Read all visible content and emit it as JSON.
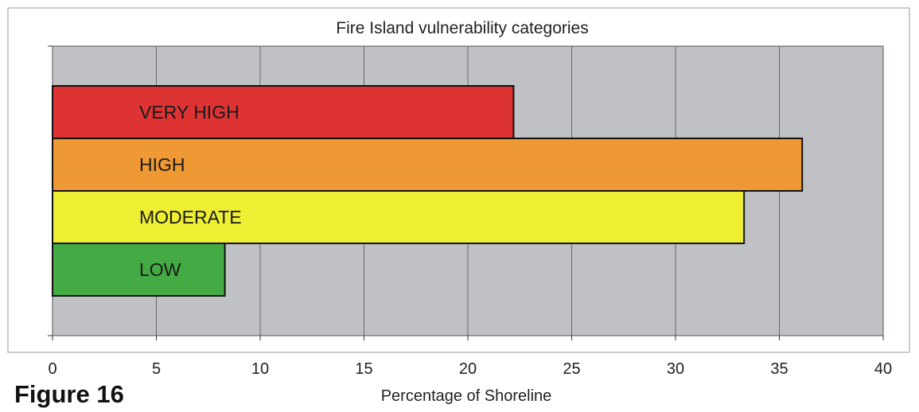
{
  "figure_label": "Figure 16",
  "chart_data": {
    "type": "bar",
    "orientation": "horizontal",
    "title": "Fire Island vulnerability categories",
    "xlabel": "Percentage of Shoreline",
    "ylabel": "",
    "xlim": [
      0,
      40
    ],
    "xticks": [
      "0",
      "5",
      "10",
      "15",
      "20",
      "25",
      "30",
      "35",
      "40"
    ],
    "grid": true,
    "categories": [
      "VERY HIGH",
      "HIGH",
      "MODERATE",
      "LOW"
    ],
    "values": [
      22.2,
      36.1,
      33.3,
      8.3
    ],
    "colors": [
      "#dd3333",
      "#ee9933",
      "#eeee33",
      "#44aa44"
    ],
    "plot_background": "#bfc1c4",
    "gridline_color": "#666666"
  }
}
